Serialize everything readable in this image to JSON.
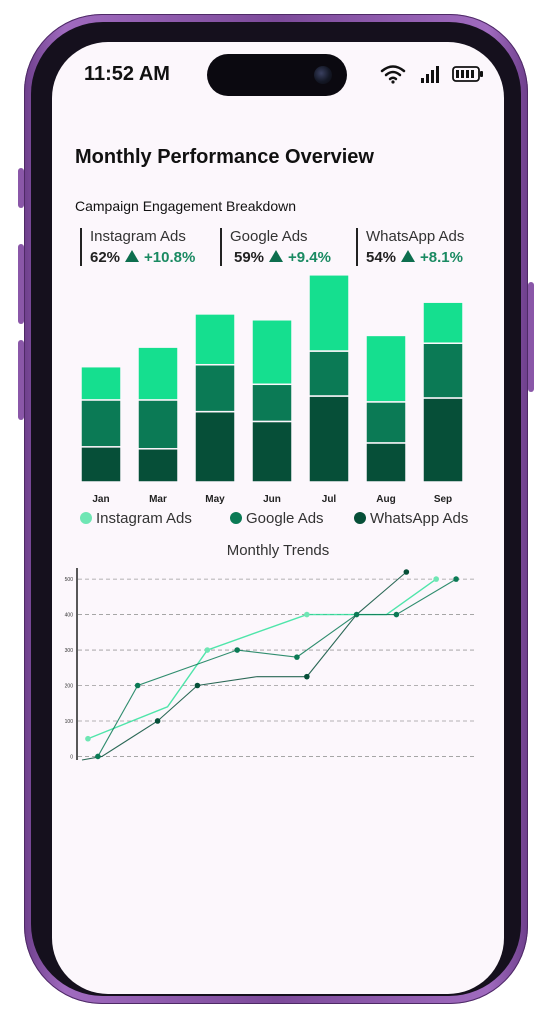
{
  "status": {
    "time": "11:52 AM"
  },
  "header": {
    "title": "Monthly Performance Overview",
    "subtitle": "Campaign Engagement Breakdown"
  },
  "stats": [
    {
      "name": "Instagram Ads",
      "pct": "62%",
      "change": "+10.8%"
    },
    {
      "name": "Google Ads",
      "pct": "59%",
      "change": "+9.4%"
    },
    {
      "name": "WhatsApp Ads",
      "pct": "54%",
      "change": "+8.1%"
    }
  ],
  "colors": {
    "instagram": "#15df8f",
    "google": "#0b7a55",
    "whatsapp": "#064f38",
    "accent": "#1a8a62"
  },
  "legend": [
    "Instagram Ads",
    "Google Ads",
    "WhatsApp Ads"
  ],
  "trends_title": "Monthly Trends",
  "chart_data": [
    {
      "type": "bar",
      "stacked": true,
      "categories": [
        "Jan",
        "Mar",
        "May",
        "Jun",
        "Jul",
        "Aug",
        "Sep"
      ],
      "series": [
        {
          "name": "WhatsApp Ads",
          "values": [
            18,
            17,
            36,
            31,
            44,
            20,
            43
          ]
        },
        {
          "name": "Google Ads",
          "values": [
            24,
            25,
            24,
            19,
            23,
            21,
            28
          ]
        },
        {
          "name": "Instagram Ads",
          "values": [
            17,
            27,
            26,
            33,
            39,
            34,
            21
          ]
        }
      ],
      "ylim": [
        0,
        110
      ],
      "legend_position": "bottom"
    },
    {
      "type": "line",
      "y_ticks": [
        0,
        100,
        200,
        300,
        400,
        500
      ],
      "ylim": [
        -10,
        520
      ],
      "xlim": [
        0,
        20
      ],
      "grid": "horizontal-dashed",
      "series": [
        {
          "name": "Instagram Ads",
          "x": [
            0.5,
            4.5,
            6.5,
            11.5,
            15.5,
            18
          ],
          "y": [
            50,
            140,
            300,
            400,
            400,
            500
          ]
        },
        {
          "name": "Google Ads",
          "x": [
            1,
            3,
            8,
            11,
            14,
            16,
            19
          ],
          "y": [
            0,
            200,
            300,
            280,
            400,
            400,
            500
          ]
        },
        {
          "name": "WhatsApp Ads",
          "x": [
            0.2,
            1.2,
            4,
            6,
            9,
            11.5,
            14,
            16.5
          ],
          "y": [
            -10,
            0,
            100,
            200,
            225,
            225,
            400,
            520
          ]
        }
      ],
      "markers": [
        {
          "series": "Instagram Ads",
          "x": [
            0.5,
            6.5,
            11.5,
            18
          ],
          "y": [
            50,
            300,
            400,
            500
          ]
        },
        {
          "series": "Google Ads",
          "x": [
            1,
            3,
            8,
            11,
            14,
            16,
            19
          ],
          "y": [
            0,
            200,
            300,
            280,
            400,
            400,
            500
          ]
        },
        {
          "series": "WhatsApp Ads",
          "x": [
            4,
            6,
            11.5,
            16.5
          ],
          "y": [
            100,
            200,
            225,
            520
          ]
        }
      ]
    }
  ]
}
